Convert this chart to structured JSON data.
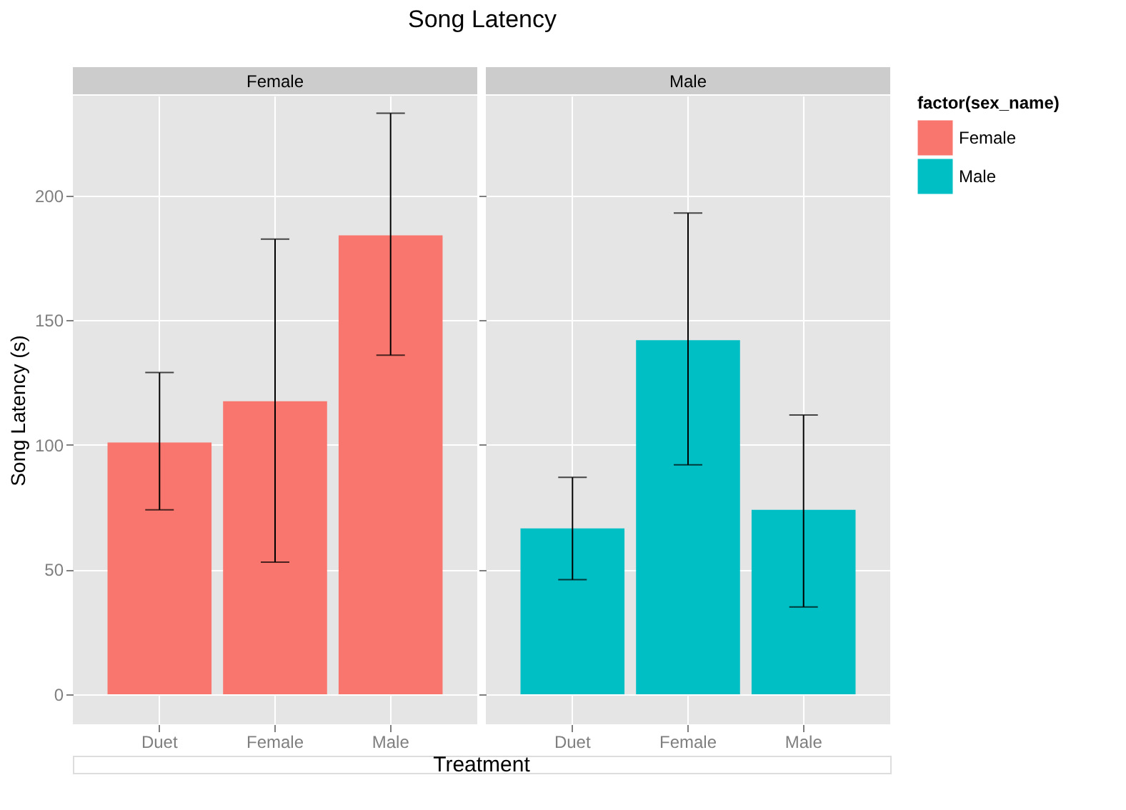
{
  "chart_data": [
    {
      "type": "bar",
      "title": "Song Latency",
      "subtitle": "Female",
      "xlabel": "Treatment",
      "ylabel": "Song Latency (s)",
      "legend_title": "factor(sex_name)",
      "legend": "right",
      "grid": true,
      "categories": [
        "Duet",
        "Female",
        "Male"
      ],
      "ylim": [
        -12,
        240
      ],
      "yticks": [
        0,
        50,
        100,
        150,
        200
      ],
      "series": [
        {
          "name": "Female",
          "color": "#f8766d",
          "values": [
            101,
            117.5,
            184
          ],
          "errors": [
            [
              74,
              129
            ],
            [
              53,
              182.5
            ],
            [
              136,
              233
            ]
          ]
        }
      ]
    },
    {
      "type": "bar",
      "subtitle": "Male",
      "grid": true,
      "tick_labels": "x",
      "categories": [
        "Duet",
        "Female",
        "Male"
      ],
      "ylim": [
        -12,
        240
      ],
      "yticks": [
        0,
        50,
        100,
        150,
        200
      ],
      "series": [
        {
          "name": "Male",
          "color": "#00bfc4",
          "values": [
            66.5,
            142,
            74
          ],
          "errors": [
            [
              46,
              87
            ],
            [
              92,
              193
            ],
            [
              35,
              112
            ]
          ]
        }
      ]
    }
  ]
}
